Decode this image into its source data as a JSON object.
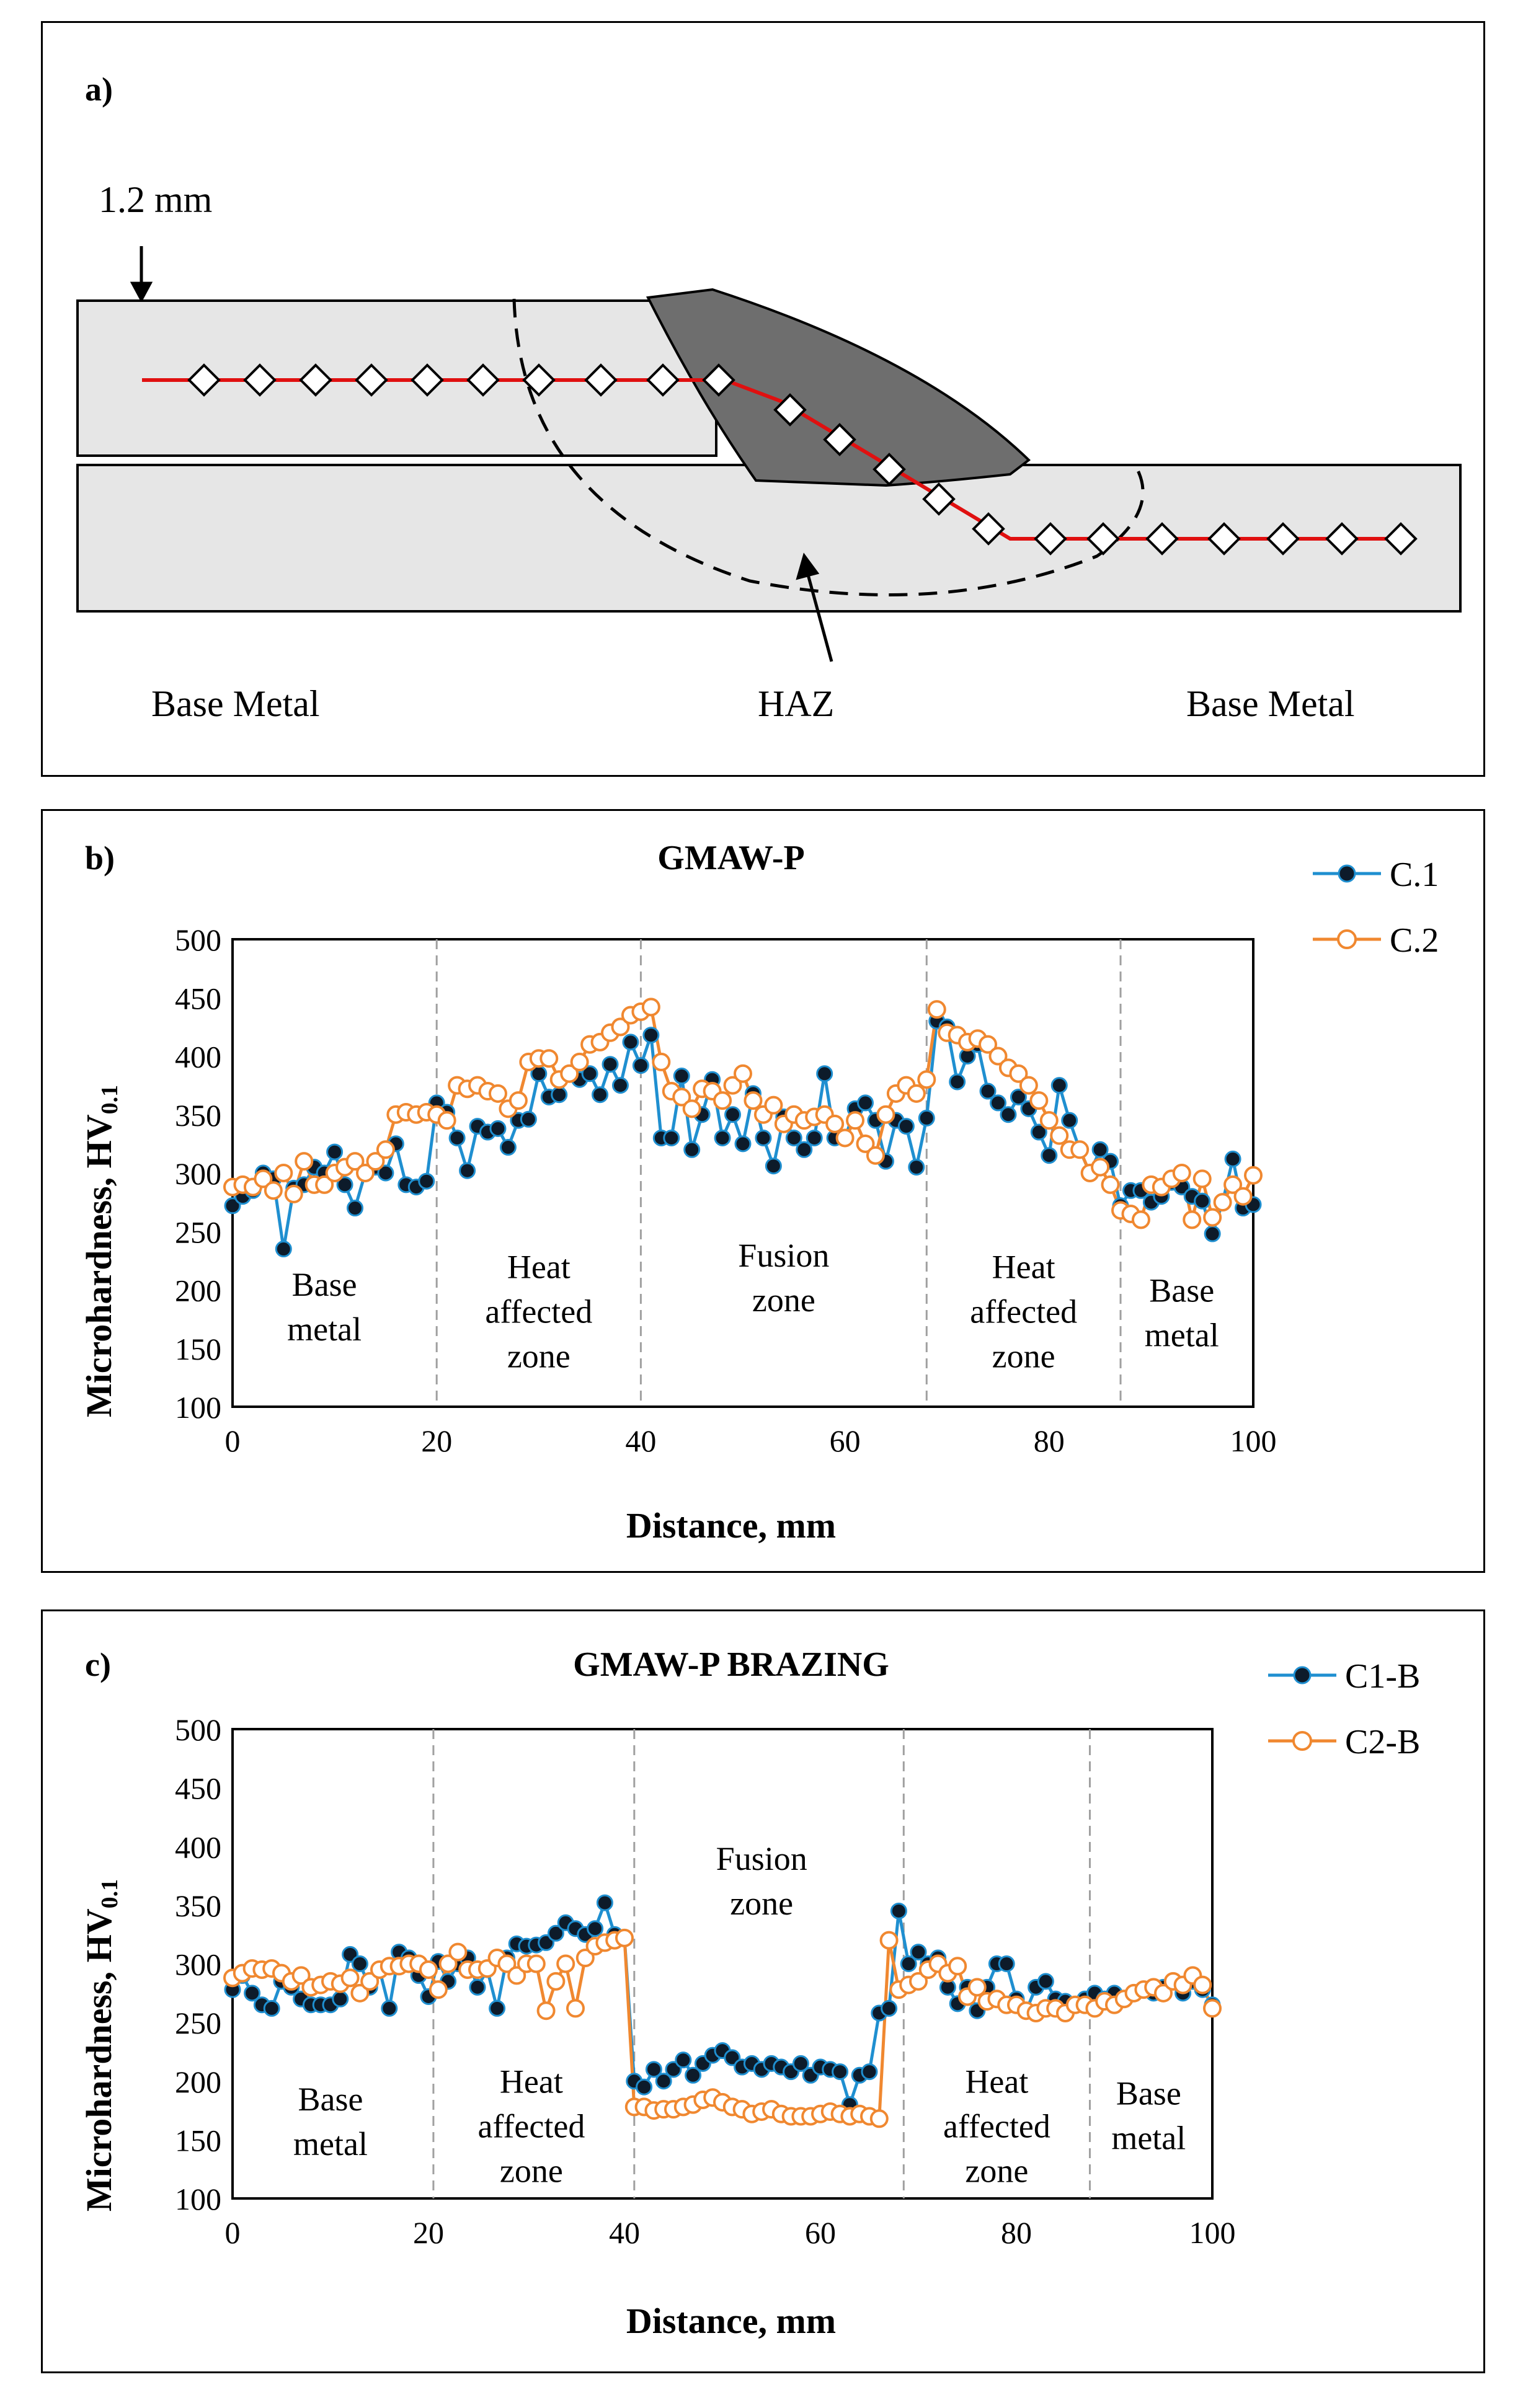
{
  "panel_a": {
    "label": "a)",
    "thickness_label": "1.2 mm",
    "labels": {
      "base_metal_left": "Base Metal",
      "haz": "HAZ",
      "base_metal_right": "Base Metal"
    },
    "colors": {
      "plate": "#e6e6e6",
      "weld": "#6e6e6e",
      "path": "#e01010"
    }
  },
  "chart_data": [
    {
      "panel_label": "b)",
      "type": "line",
      "title": "GMAW-P",
      "xlabel": "Distance, mm",
      "ylabel": "Microhardness, HV",
      "ylabel_sub": "0.1",
      "xlim": [
        0,
        100
      ],
      "ylim": [
        100,
        500
      ],
      "xticks": [
        0,
        20,
        40,
        60,
        80,
        100
      ],
      "yticks": [
        100,
        150,
        200,
        250,
        300,
        350,
        400,
        450,
        500
      ],
      "zone_boundaries": [
        20,
        40,
        68,
        87
      ],
      "zones": [
        {
          "lines": [
            "Base",
            "metal"
          ],
          "x": 9,
          "y": 195
        },
        {
          "lines": [
            "Heat",
            "affected",
            "zone"
          ],
          "x": 30,
          "y": 210
        },
        {
          "lines": [
            "Fusion",
            "zone"
          ],
          "x": 54,
          "y": 220
        },
        {
          "lines": [
            "Heat",
            "affected",
            "zone"
          ],
          "x": 77.5,
          "y": 210
        },
        {
          "lines": [
            "Base",
            "metal"
          ],
          "x": 93,
          "y": 190
        }
      ],
      "series": [
        {
          "name": "C.1",
          "color": "#1f8fd0",
          "marker": "filled",
          "x": [
            0,
            1,
            2,
            3,
            4,
            5,
            6,
            7,
            8,
            9,
            10,
            11,
            12,
            13,
            14,
            15,
            16,
            17,
            18,
            19,
            20,
            21,
            22,
            23,
            24,
            25,
            26,
            27,
            28,
            29,
            30,
            31,
            32,
            33,
            34,
            35,
            36,
            37,
            38,
            39,
            40,
            41,
            42,
            43,
            44,
            45,
            46,
            47,
            48,
            49,
            50,
            51,
            52,
            53,
            54,
            55,
            56,
            57,
            58,
            59,
            60,
            61,
            62,
            63,
            64,
            65,
            66,
            67,
            68,
            69,
            70,
            71,
            72,
            73,
            74,
            75,
            76,
            77,
            78,
            79,
            80,
            81,
            82,
            83,
            84,
            85,
            86,
            87,
            88,
            89,
            90,
            91,
            92,
            93,
            94,
            95,
            96,
            97,
            98,
            99,
            100
          ],
          "y": [
            272,
            280,
            285,
            300,
            295,
            235,
            287,
            290,
            305,
            300,
            318,
            290,
            270,
            300,
            305,
            300,
            325,
            290,
            288,
            293,
            360,
            352,
            330,
            302,
            340,
            335,
            338,
            322,
            345,
            346,
            385,
            365,
            367,
            385,
            380,
            385,
            367,
            393,
            375,
            412,
            392,
            418,
            330,
            330,
            383,
            320,
            350,
            380,
            330,
            350,
            325,
            368,
            330,
            306,
            348,
            330,
            320,
            330,
            385,
            330,
            330,
            355,
            360,
            345,
            310,
            345,
            340,
            305,
            347,
            430,
            425,
            378,
            400,
            410,
            370,
            360,
            350,
            365,
            355,
            335,
            315,
            375,
            345,
            320,
            300,
            320,
            310,
            272,
            285,
            285,
            275,
            280,
            292,
            288,
            280,
            276,
            248,
            275,
            312,
            270,
            273
          ]
        },
        {
          "name": "C.2",
          "color": "#f08830",
          "marker": "open",
          "x": [
            0,
            1,
            2,
            3,
            4,
            5,
            6,
            7,
            8,
            9,
            10,
            11,
            12,
            13,
            14,
            15,
            16,
            17,
            18,
            19,
            20,
            21,
            22,
            23,
            24,
            25,
            26,
            27,
            28,
            29,
            30,
            31,
            32,
            33,
            34,
            35,
            36,
            37,
            38,
            39,
            40,
            41,
            42,
            43,
            44,
            45,
            46,
            47,
            48,
            49,
            50,
            51,
            52,
            53,
            54,
            55,
            56,
            57,
            58,
            59,
            60,
            61,
            62,
            63,
            64,
            65,
            66,
            67,
            68,
            69,
            70,
            71,
            72,
            73,
            74,
            75,
            76,
            77,
            78,
            79,
            80,
            81,
            82,
            83,
            84,
            85,
            86,
            87,
            88,
            89,
            90,
            91,
            92,
            93,
            94,
            95,
            96,
            97,
            98,
            99,
            100
          ],
          "y": [
            288,
            290,
            288,
            295,
            285,
            300,
            282,
            310,
            290,
            290,
            300,
            305,
            310,
            300,
            310,
            320,
            350,
            352,
            350,
            352,
            350,
            345,
            375,
            372,
            375,
            370,
            368,
            355,
            362,
            395,
            398,
            398,
            380,
            385,
            395,
            410,
            412,
            420,
            425,
            435,
            438,
            442,
            395,
            370,
            365,
            355,
            372,
            370,
            362,
            375,
            385,
            362,
            350,
            358,
            342,
            350,
            345,
            348,
            350,
            342,
            330,
            345,
            325,
            315,
            350,
            368,
            375,
            368,
            380,
            440,
            420,
            418,
            412,
            415,
            410,
            400,
            390,
            385,
            375,
            362,
            345,
            332,
            320,
            320,
            300,
            305,
            290,
            268,
            265,
            260,
            290,
            288,
            295,
            300,
            260,
            295,
            262,
            275,
            290,
            280,
            298
          ]
        }
      ]
    },
    {
      "panel_label": "c)",
      "type": "line",
      "title": "GMAW-P BRAZING",
      "xlabel": "Distance, mm",
      "ylabel": "Microhardness, HV",
      "ylabel_sub": "0.1",
      "xlim": [
        0,
        100
      ],
      "ylim": [
        100,
        500
      ],
      "xticks": [
        0,
        20,
        40,
        60,
        80,
        100
      ],
      "yticks": [
        100,
        150,
        200,
        250,
        300,
        350,
        400,
        450,
        500
      ],
      "zone_boundaries": [
        20.5,
        41,
        68.5,
        87.5
      ],
      "zones": [
        {
          "lines": [
            "Base",
            "metal"
          ],
          "x": 10,
          "y": 175
        },
        {
          "lines": [
            "Heat",
            "affected",
            "zone"
          ],
          "x": 30.5,
          "y": 190
        },
        {
          "lines": [
            "Fusion",
            "zone"
          ],
          "x": 54,
          "y": 380
        },
        {
          "lines": [
            "Heat",
            "affected",
            "zone"
          ],
          "x": 78,
          "y": 190
        },
        {
          "lines": [
            "Base",
            "metal"
          ],
          "x": 93.5,
          "y": 180
        }
      ],
      "series": [
        {
          "name": "C1-B",
          "color": "#1f8fd0",
          "marker": "filled",
          "x": [
            0,
            1,
            2,
            3,
            4,
            5,
            6,
            7,
            8,
            9,
            10,
            11,
            12,
            13,
            14,
            15,
            16,
            17,
            18,
            19,
            20,
            21,
            22,
            23,
            24,
            25,
            26,
            27,
            28,
            29,
            30,
            31,
            32,
            33,
            34,
            35,
            36,
            37,
            38,
            39,
            40,
            41,
            42,
            43,
            44,
            45,
            46,
            47,
            48,
            49,
            50,
            51,
            52,
            53,
            54,
            55,
            56,
            57,
            58,
            59,
            60,
            61,
            62,
            63,
            64,
            65,
            66,
            67,
            68,
            69,
            70,
            71,
            72,
            73,
            74,
            75,
            76,
            77,
            78,
            79,
            80,
            81,
            82,
            83,
            84,
            85,
            86,
            87,
            88,
            89,
            90,
            91,
            92,
            93,
            94,
            95,
            96,
            97,
            98,
            99,
            100
          ],
          "y": [
            278,
            290,
            275,
            265,
            262,
            285,
            280,
            270,
            265,
            265,
            265,
            270,
            308,
            300,
            280,
            295,
            262,
            310,
            305,
            290,
            272,
            302,
            285,
            300,
            305,
            280,
            295,
            262,
            305,
            317,
            315,
            316,
            318,
            326,
            335,
            330,
            325,
            330,
            352,
            325,
            322,
            200,
            195,
            210,
            200,
            210,
            218,
            205,
            215,
            222,
            226,
            220,
            212,
            215,
            210,
            215,
            212,
            208,
            215,
            205,
            212,
            210,
            208,
            180,
            205,
            208,
            258,
            262,
            345,
            300,
            310,
            300,
            305,
            280,
            266,
            280,
            260,
            280,
            300,
            300,
            270,
            260,
            280,
            285,
            270,
            268,
            265,
            270,
            275,
            270,
            275,
            270,
            275,
            278,
            275,
            280,
            285,
            275,
            285,
            278,
            265
          ]
        },
        {
          "name": "C2-B",
          "color": "#f08830",
          "marker": "open",
          "x": [
            0,
            1,
            2,
            3,
            4,
            5,
            6,
            7,
            8,
            9,
            10,
            11,
            12,
            13,
            14,
            15,
            16,
            17,
            18,
            19,
            20,
            21,
            22,
            23,
            24,
            25,
            26,
            27,
            28,
            29,
            30,
            31,
            32,
            33,
            34,
            35,
            36,
            37,
            38,
            39,
            40,
            41,
            42,
            43,
            44,
            45,
            46,
            47,
            48,
            49,
            50,
            51,
            52,
            53,
            54,
            55,
            56,
            57,
            58,
            59,
            60,
            61,
            62,
            63,
            64,
            65,
            66,
            67,
            68,
            69,
            70,
            71,
            72,
            73,
            74,
            75,
            76,
            77,
            78,
            79,
            80,
            81,
            82,
            83,
            84,
            85,
            86,
            87,
            88,
            89,
            90,
            91,
            92,
            93,
            94,
            95,
            96,
            97,
            98,
            99,
            100
          ],
          "y": [
            288,
            292,
            296,
            295,
            296,
            292,
            285,
            290,
            280,
            282,
            285,
            283,
            288,
            275,
            285,
            295,
            298,
            298,
            300,
            300,
            295,
            278,
            300,
            310,
            295,
            295,
            296,
            305,
            300,
            290,
            300,
            300,
            260,
            285,
            300,
            262,
            305,
            315,
            318,
            320,
            322,
            178,
            178,
            175,
            176,
            176,
            178,
            180,
            184,
            186,
            182,
            178,
            176,
            172,
            174,
            176,
            172,
            170,
            170,
            170,
            172,
            174,
            172,
            170,
            172,
            170,
            168,
            320,
            278,
            282,
            285,
            295,
            300,
            292,
            298,
            272,
            280,
            268,
            270,
            265,
            265,
            260,
            258,
            262,
            262,
            258,
            265,
            265,
            262,
            268,
            265,
            270,
            275,
            278,
            280,
            275,
            285,
            282,
            290,
            282,
            262
          ]
        }
      ]
    }
  ]
}
